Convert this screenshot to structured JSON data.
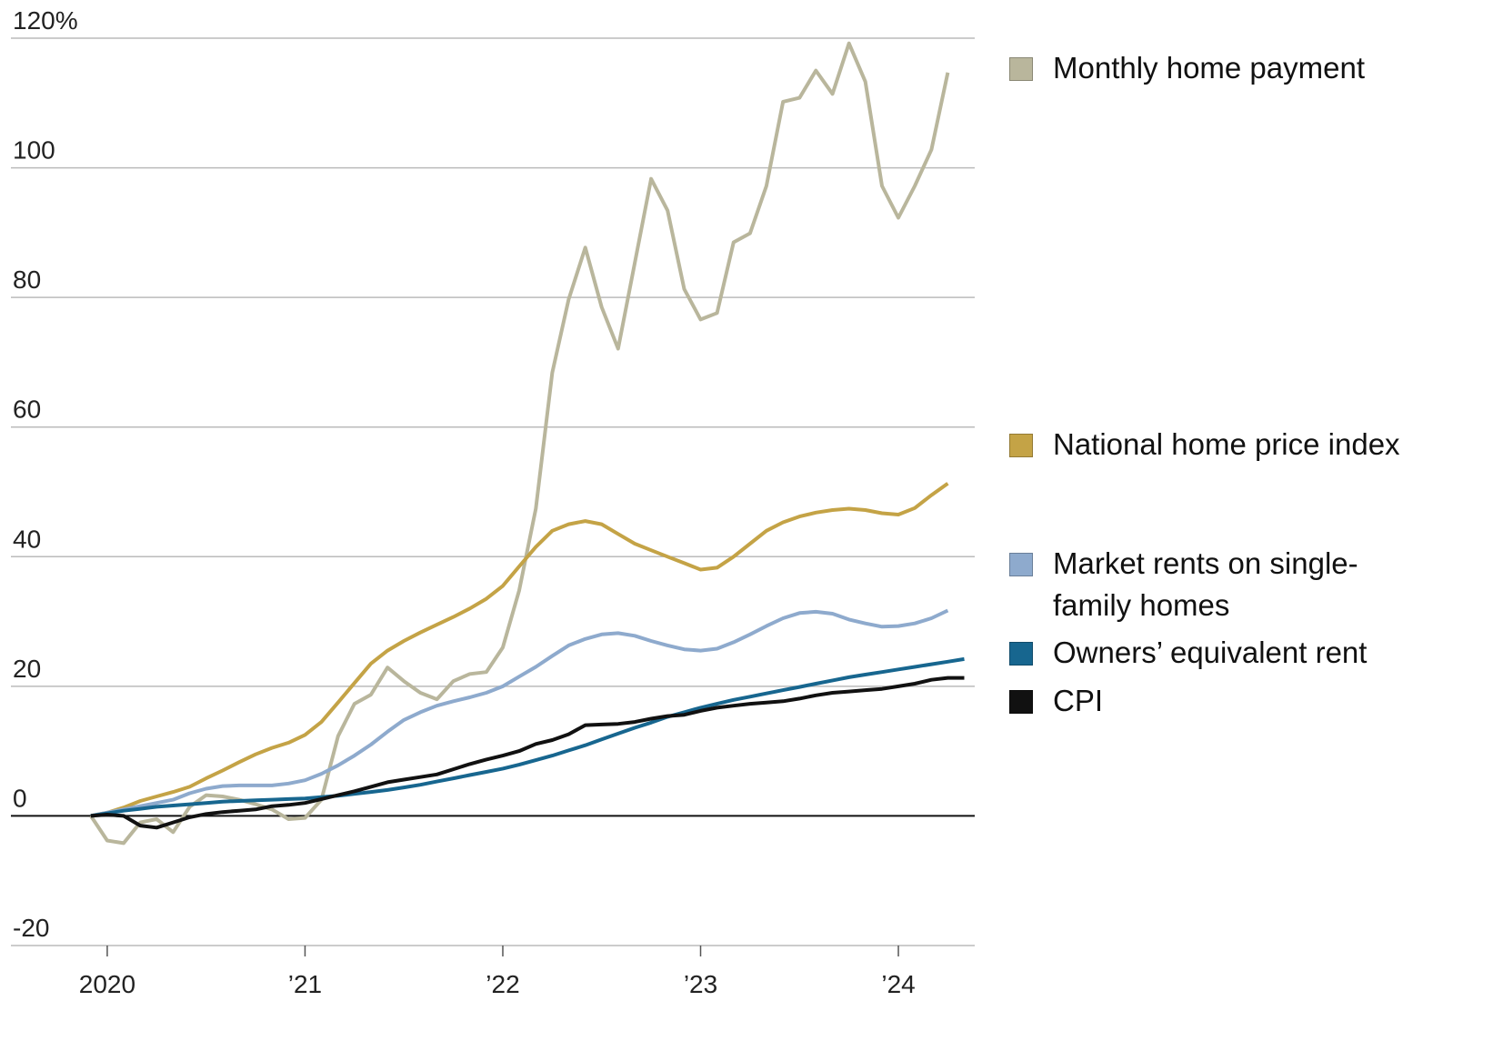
{
  "chart_data": {
    "type": "line",
    "x": [
      2019.917,
      2020,
      2020.083,
      2020.167,
      2020.25,
      2020.333,
      2020.417,
      2020.5,
      2020.583,
      2020.667,
      2020.75,
      2020.833,
      2020.917,
      2021,
      2021.083,
      2021.167,
      2021.25,
      2021.333,
      2021.417,
      2021.5,
      2021.583,
      2021.667,
      2021.75,
      2021.833,
      2021.917,
      2022,
      2022.083,
      2022.167,
      2022.25,
      2022.333,
      2022.417,
      2022.5,
      2022.583,
      2022.667,
      2022.75,
      2022.833,
      2022.917,
      2023,
      2023.083,
      2023.167,
      2023.25,
      2023.333,
      2023.417,
      2023.5,
      2023.583,
      2023.667,
      2023.75,
      2023.833,
      2023.917,
      2024,
      2024.083,
      2024.167,
      2024.25,
      2024.333
    ],
    "series": [
      {
        "name": "Monthly home payment",
        "color": "#b9b69c",
        "values": [
          0,
          -3.8,
          -4.2,
          -1,
          -0.5,
          -2.5,
          1.4,
          3.2,
          3,
          2.5,
          1.8,
          1,
          -0.5,
          -0.3,
          2.5,
          12.3,
          17.3,
          18.7,
          22.9,
          20.8,
          19,
          18,
          20.8,
          21.9,
          22.2,
          26,
          34.8,
          47.4,
          68.4,
          79.7,
          87.7,
          78.5,
          72.1,
          85.3,
          98.3,
          93.4,
          81.3,
          76.6,
          77.6,
          88.5,
          89.9,
          97.2,
          110.2,
          110.8,
          115,
          111.4,
          119.2,
          113.3,
          97.2,
          92.3,
          97.2,
          102.8,
          114.7,
          null
        ]
      },
      {
        "name": "National home price index",
        "color": "#c4a346",
        "values": [
          0,
          0.5,
          1.3,
          2.3,
          3,
          3.7,
          4.5,
          5.8,
          7,
          8.3,
          9.5,
          10.5,
          11.3,
          12.5,
          14.5,
          17.5,
          20.5,
          23.5,
          25.5,
          27,
          28.3,
          29.5,
          30.7,
          32,
          33.5,
          35.5,
          38.5,
          41.5,
          44,
          45,
          45.5,
          45,
          43.5,
          42,
          41,
          40,
          39,
          38,
          38.3,
          40,
          42,
          44,
          45.3,
          46.2,
          46.8,
          47.2,
          47.4,
          47.2,
          46.7,
          46.5,
          47.5,
          49.5,
          51.3,
          null
        ]
      },
      {
        "name": "Market rents on single-family homes",
        "color": "#8eaacd",
        "values": [
          0,
          0.5,
          1,
          1.5,
          2,
          2.5,
          3.5,
          4.2,
          4.6,
          4.7,
          4.7,
          4.7,
          5,
          5.5,
          6.5,
          7.8,
          9.3,
          11,
          13,
          14.8,
          16,
          17,
          17.7,
          18.3,
          19,
          20,
          21.5,
          23,
          24.7,
          26.3,
          27.3,
          28,
          28.2,
          27.8,
          27,
          26.3,
          25.7,
          25.5,
          25.8,
          26.8,
          28,
          29.3,
          30.5,
          31.3,
          31.5,
          31.2,
          30.3,
          29.7,
          29.2,
          29.3,
          29.7,
          30.5,
          31.7,
          null
        ]
      },
      {
        "name": "Owners’ equivalent rent",
        "color": "#17668f",
        "values": [
          0,
          0.4,
          0.8,
          1.1,
          1.4,
          1.6,
          1.8,
          2,
          2.2,
          2.3,
          2.4,
          2.5,
          2.6,
          2.7,
          2.9,
          3.1,
          3.4,
          3.7,
          4,
          4.4,
          4.8,
          5.3,
          5.8,
          6.3,
          6.8,
          7.3,
          7.9,
          8.6,
          9.3,
          10.1,
          10.9,
          11.8,
          12.7,
          13.6,
          14.4,
          15.3,
          16,
          16.7,
          17.3,
          17.9,
          18.4,
          18.9,
          19.4,
          19.9,
          20.4,
          20.9,
          21.4,
          21.8,
          22.2,
          22.6,
          23,
          23.4,
          23.8,
          24.2
        ]
      },
      {
        "name": "CPI",
        "color": "#111111",
        "values": [
          0,
          0.2,
          0,
          -1.5,
          -1.8,
          -1,
          -0.2,
          0.3,
          0.6,
          0.8,
          1,
          1.5,
          1.7,
          2,
          2.6,
          3.2,
          3.8,
          4.5,
          5.2,
          5.6,
          6,
          6.4,
          7.2,
          8,
          8.7,
          9.3,
          10,
          11.1,
          11.7,
          12.6,
          14,
          14.1,
          14.2,
          14.5,
          15,
          15.4,
          15.6,
          16.2,
          16.7,
          17,
          17.3,
          17.5,
          17.7,
          18.1,
          18.6,
          19,
          19.2,
          19.4,
          19.6,
          20,
          20.4,
          21,
          21.3,
          21.3
        ]
      }
    ],
    "xlim": [
      2019.513,
      2024.386
    ],
    "xticks": [
      {
        "value": 2020,
        "label": "2020"
      },
      {
        "value": 2021,
        "label": "’21"
      },
      {
        "value": 2022,
        "label": "’22"
      },
      {
        "value": 2023,
        "label": "’23"
      },
      {
        "value": 2024,
        "label": "’24"
      }
    ],
    "ylim": [
      -20,
      120
    ],
    "yticks": [
      -20,
      0,
      20,
      40,
      60,
      80,
      100,
      {
        "value": 120,
        "label": "120%"
      }
    ],
    "grid": true,
    "legend": "right"
  }
}
